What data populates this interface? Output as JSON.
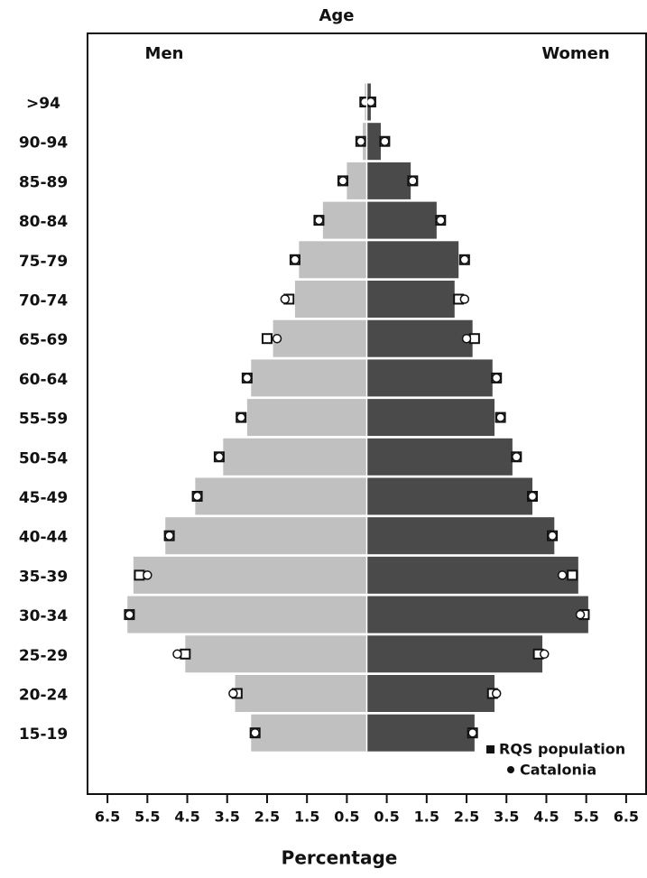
{
  "chart_data": {
    "type": "pyramid",
    "title": "Age",
    "x_label": "Percentage",
    "left_label": "Men",
    "right_label": "Women",
    "categories": [
      ">94",
      "90-94",
      "85-89",
      "80-84",
      "75-79",
      "70-74",
      "65-69",
      "60-64",
      "55-59",
      "50-54",
      "45-49",
      "40-44",
      "35-39",
      "30-34",
      "25-29",
      "20-24",
      "15-19"
    ],
    "series": [
      {
        "name": "Men",
        "color": "#c0c0c0",
        "values": [
          -0.05,
          -0.1,
          -0.5,
          -1.1,
          -1.7,
          -1.8,
          -2.35,
          -2.9,
          -3.0,
          -3.6,
          -4.3,
          -5.05,
          -5.85,
          -6.0,
          -4.55,
          -3.3,
          -2.9
        ]
      },
      {
        "name": "Women",
        "color": "#4a4a4a",
        "values": [
          0.1,
          0.35,
          1.1,
          1.75,
          2.3,
          2.2,
          2.65,
          3.15,
          3.2,
          3.65,
          4.15,
          4.7,
          5.3,
          5.55,
          4.4,
          3.2,
          2.7
        ]
      }
    ],
    "markers": [
      {
        "name": "RQS population",
        "symbol": "square",
        "men": [
          -0.05,
          -0.15,
          -0.6,
          -1.2,
          -1.8,
          -1.95,
          -2.5,
          -3.0,
          -3.15,
          -3.7,
          -4.25,
          -4.95,
          -5.7,
          -5.95,
          -4.55,
          -3.25,
          -2.8
        ],
        "women": [
          0.1,
          0.45,
          1.15,
          1.85,
          2.45,
          2.3,
          2.7,
          3.25,
          3.35,
          3.75,
          4.15,
          4.65,
          5.15,
          5.45,
          4.3,
          3.15,
          2.65
        ]
      },
      {
        "name": "Catalonia",
        "symbol": "circle",
        "men": [
          -0.05,
          -0.15,
          -0.6,
          -1.2,
          -1.8,
          -2.05,
          -2.25,
          -3.0,
          -3.15,
          -3.7,
          -4.25,
          -4.95,
          -5.5,
          -5.95,
          -4.75,
          -3.35,
          -2.8
        ],
        "women": [
          0.1,
          0.45,
          1.15,
          1.85,
          2.45,
          2.45,
          2.5,
          3.25,
          3.35,
          3.75,
          4.15,
          4.65,
          4.9,
          5.35,
          4.45,
          3.25,
          2.65
        ]
      }
    ],
    "xlim": [
      -7,
      7
    ],
    "xticks": [
      {
        "value": -6.5,
        "label": "6.5"
      },
      {
        "value": -5.5,
        "label": "5.5"
      },
      {
        "value": -4.5,
        "label": "4.5"
      },
      {
        "value": -3.5,
        "label": "3.5"
      },
      {
        "value": -2.5,
        "label": "2.5"
      },
      {
        "value": -1.5,
        "label": "1.5"
      },
      {
        "value": -0.5,
        "label": "0.5"
      },
      0.5,
      1.5,
      2.5,
      3.5,
      4.5,
      5.5,
      6.5
    ]
  }
}
